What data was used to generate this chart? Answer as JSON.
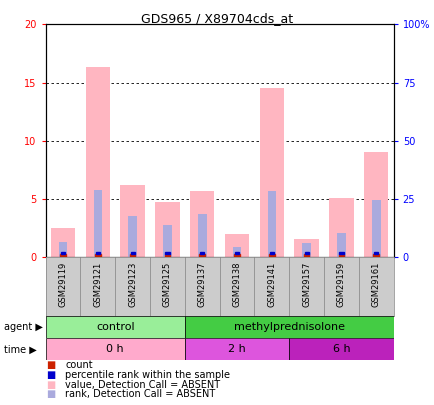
{
  "title": "GDS965 / X89704cds_at",
  "samples": [
    "GSM29119",
    "GSM29121",
    "GSM29123",
    "GSM29125",
    "GSM29137",
    "GSM29138",
    "GSM29141",
    "GSM29157",
    "GSM29159",
    "GSM29161"
  ],
  "pink_bar_heights": [
    2.5,
    16.3,
    6.2,
    4.7,
    5.7,
    2.0,
    14.5,
    1.6,
    5.1,
    9.0
  ],
  "blue_bar_heights": [
    1.3,
    5.8,
    3.5,
    2.8,
    3.7,
    0.9,
    5.7,
    1.2,
    2.1,
    4.9
  ],
  "ylim_left": [
    0,
    20
  ],
  "ylim_right": [
    0,
    100
  ],
  "yticks_left": [
    0,
    5,
    10,
    15,
    20
  ],
  "yticks_right": [
    0,
    25,
    50,
    75,
    100
  ],
  "ytick_labels_left": [
    "0",
    "5",
    "10",
    "15",
    "20"
  ],
  "ytick_labels_right": [
    "0",
    "25",
    "50",
    "75",
    "100%"
  ],
  "pink_color": "#FFB6C1",
  "light_blue_color": "#AAAADD",
  "red_color": "#CC2200",
  "blue_color": "#0000CC",
  "control_color": "#99EE99",
  "methyl_color": "#44CC44",
  "time0_color": "#FFAACC",
  "time2_color": "#DD55DD",
  "time6_color": "#BB22BB",
  "label_area_color": "#CCCCCC",
  "legend_items": [
    {
      "color": "#CC2200",
      "label": "count"
    },
    {
      "color": "#0000CC",
      "label": "percentile rank within the sample"
    },
    {
      "color": "#FFB6C1",
      "label": "value, Detection Call = ABSENT"
    },
    {
      "color": "#AAAADD",
      "label": "rank, Detection Call = ABSENT"
    }
  ],
  "bar_width": 0.7,
  "bg_color": "#FFFFFF",
  "n_control": 4,
  "n_time0": 4,
  "n_time2": 3,
  "n_time6": 3,
  "title_fontsize": 9,
  "tick_fontsize": 7,
  "sample_fontsize": 6,
  "legend_fontsize": 7,
  "agent_fontsize": 8,
  "time_fontsize": 8
}
